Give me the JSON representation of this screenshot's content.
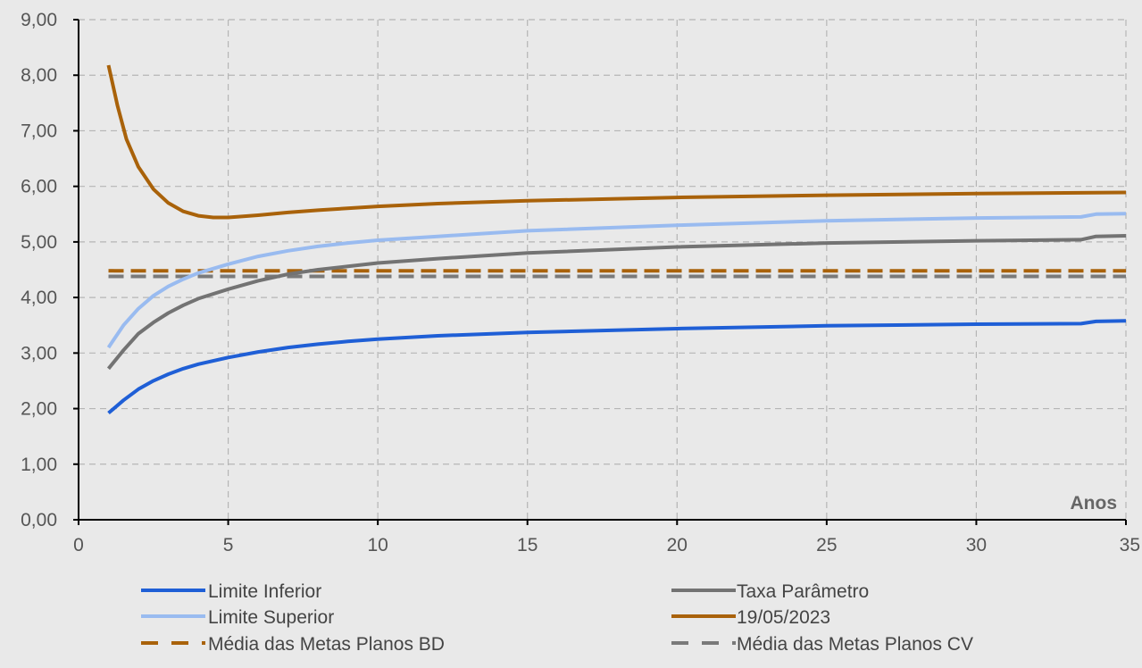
{
  "chart_data": {
    "type": "line",
    "title": "",
    "xlabel": "Anos",
    "ylabel": "",
    "xlim": [
      0,
      35
    ],
    "ylim": [
      0,
      9
    ],
    "x_ticks": [
      0,
      5,
      10,
      15,
      20,
      25,
      30,
      35
    ],
    "x_tick_labels": [
      "0",
      "5",
      "10",
      "15",
      "20",
      "25",
      "30",
      "35"
    ],
    "y_ticks": [
      0,
      1,
      2,
      3,
      4,
      5,
      6,
      7,
      8,
      9
    ],
    "y_tick_labels": [
      "0,00",
      "1,00",
      "2,00",
      "3,00",
      "4,00",
      "5,00",
      "6,00",
      "7,00",
      "8,00",
      "9,00"
    ],
    "grid": "dashed",
    "legend_position": "bottom",
    "series": [
      {
        "name": "Limite Inferior",
        "color": "#1f5fd6",
        "dash": "solid",
        "points": [
          [
            1,
            1.92
          ],
          [
            1.5,
            2.15
          ],
          [
            2,
            2.35
          ],
          [
            2.5,
            2.5
          ],
          [
            3,
            2.62
          ],
          [
            3.5,
            2.72
          ],
          [
            4,
            2.8
          ],
          [
            5,
            2.92
          ],
          [
            6,
            3.02
          ],
          [
            7,
            3.1
          ],
          [
            8,
            3.16
          ],
          [
            9,
            3.21
          ],
          [
            10,
            3.25
          ],
          [
            12,
            3.31
          ],
          [
            15,
            3.37
          ],
          [
            20,
            3.44
          ],
          [
            25,
            3.49
          ],
          [
            30,
            3.52
          ],
          [
            33.5,
            3.53
          ],
          [
            34,
            3.57
          ],
          [
            35,
            3.58
          ]
        ]
      },
      {
        "name": "Taxa Parâmetro",
        "color": "#737373",
        "dash": "solid",
        "points": [
          [
            1,
            2.72
          ],
          [
            1.5,
            3.05
          ],
          [
            2,
            3.35
          ],
          [
            2.5,
            3.55
          ],
          [
            3,
            3.72
          ],
          [
            3.5,
            3.86
          ],
          [
            4,
            3.98
          ],
          [
            5,
            4.15
          ],
          [
            6,
            4.3
          ],
          [
            7,
            4.42
          ],
          [
            8,
            4.5
          ],
          [
            9,
            4.56
          ],
          [
            10,
            4.62
          ],
          [
            12,
            4.7
          ],
          [
            15,
            4.8
          ],
          [
            20,
            4.91
          ],
          [
            25,
            4.98
          ],
          [
            30,
            5.02
          ],
          [
            33.5,
            5.04
          ],
          [
            34,
            5.1
          ],
          [
            35,
            5.11
          ]
        ]
      },
      {
        "name": "Limite Superior",
        "color": "#99bbf0",
        "dash": "solid",
        "points": [
          [
            1,
            3.1
          ],
          [
            1.5,
            3.5
          ],
          [
            2,
            3.8
          ],
          [
            2.5,
            4.03
          ],
          [
            3,
            4.2
          ],
          [
            3.5,
            4.33
          ],
          [
            4,
            4.44
          ],
          [
            5,
            4.6
          ],
          [
            6,
            4.74
          ],
          [
            7,
            4.84
          ],
          [
            8,
            4.92
          ],
          [
            9,
            4.98
          ],
          [
            10,
            5.03
          ],
          [
            12,
            5.1
          ],
          [
            15,
            5.2
          ],
          [
            20,
            5.3
          ],
          [
            25,
            5.38
          ],
          [
            30,
            5.43
          ],
          [
            33.5,
            5.45
          ],
          [
            34,
            5.5
          ],
          [
            35,
            5.51
          ]
        ]
      },
      {
        "name": "19/05/2023",
        "color": "#a9620a",
        "dash": "solid",
        "points": [
          [
            1,
            8.18
          ],
          [
            1.3,
            7.45
          ],
          [
            1.6,
            6.85
          ],
          [
            2,
            6.35
          ],
          [
            2.5,
            5.95
          ],
          [
            3,
            5.7
          ],
          [
            3.5,
            5.55
          ],
          [
            4,
            5.47
          ],
          [
            4.5,
            5.44
          ],
          [
            5,
            5.44
          ],
          [
            6,
            5.48
          ],
          [
            7,
            5.53
          ],
          [
            8,
            5.57
          ],
          [
            10,
            5.64
          ],
          [
            12,
            5.69
          ],
          [
            15,
            5.74
          ],
          [
            20,
            5.8
          ],
          [
            25,
            5.84
          ],
          [
            30,
            5.87
          ],
          [
            35,
            5.89
          ]
        ]
      },
      {
        "name": "Média das Metas Planos BD",
        "color": "#a9620a",
        "dash": "dashed",
        "points": [
          [
            1,
            4.48
          ],
          [
            35,
            4.48
          ]
        ]
      },
      {
        "name": "Média das Metas Planos CV",
        "color": "#7a7a7a",
        "dash": "dashed",
        "points": [
          [
            1,
            4.38
          ],
          [
            35,
            4.38
          ]
        ]
      }
    ]
  }
}
